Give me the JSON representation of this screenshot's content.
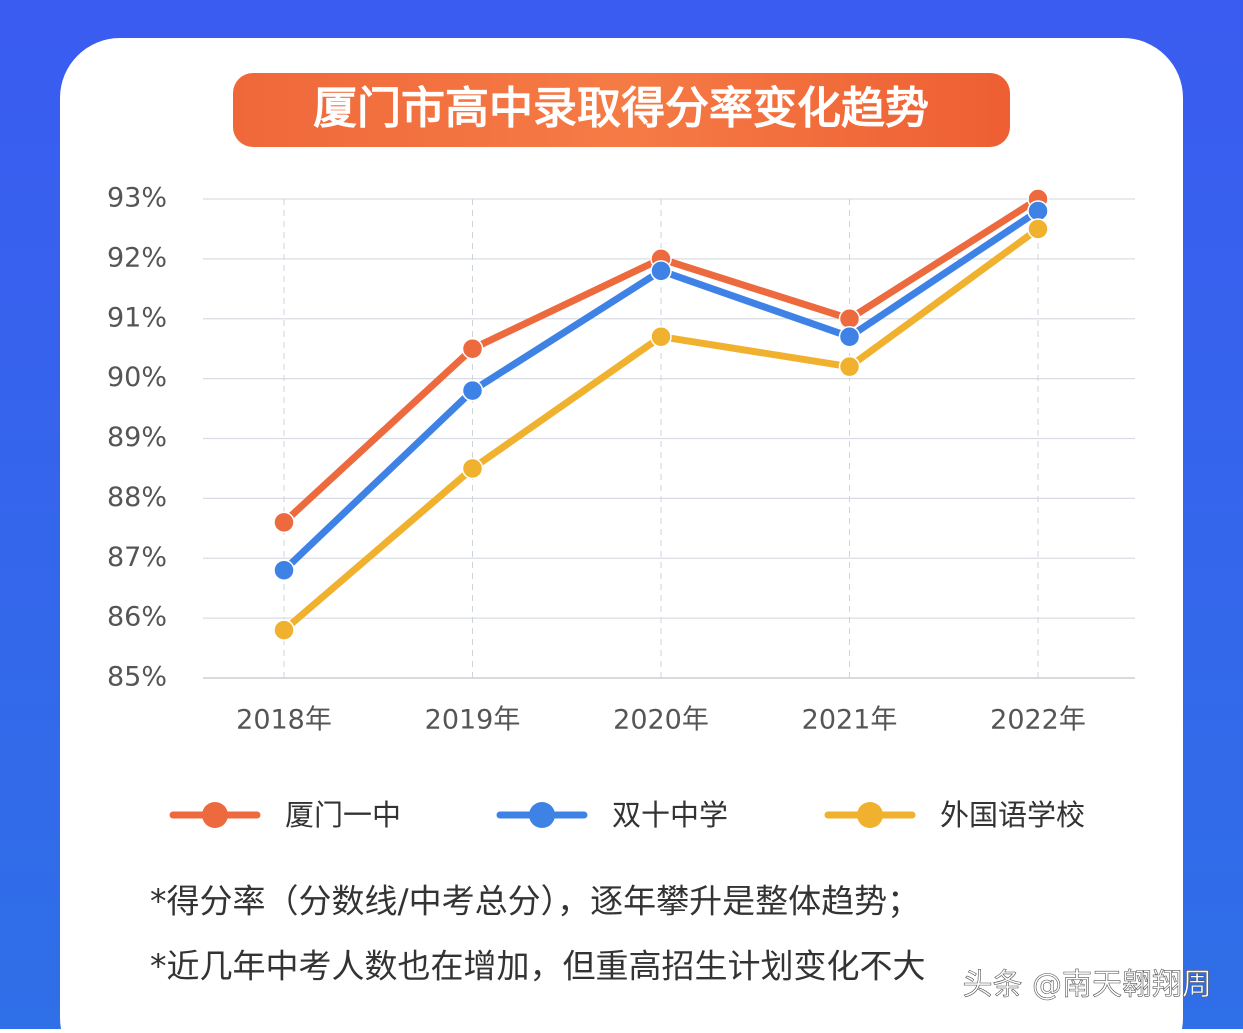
{
  "chart_data": {
    "type": "line",
    "title": "厦门市高中录取得分率变化趋势",
    "categories": [
      "2018年",
      "2019年",
      "2020年",
      "2021年",
      "2022年"
    ],
    "series": [
      {
        "name": "厦门一中",
        "color": "#ec6a3d",
        "values": [
          87.6,
          90.5,
          92.0,
          91.0,
          93.0
        ]
      },
      {
        "name": "双十中学",
        "color": "#3f82e6",
        "values": [
          86.8,
          89.8,
          91.8,
          90.7,
          92.8
        ]
      },
      {
        "name": "外国语学校",
        "color": "#f0b22e",
        "values": [
          85.8,
          88.5,
          90.7,
          90.2,
          92.5
        ]
      }
    ],
    "ylim": [
      85,
      93
    ],
    "yticks": [
      {
        "value": 85,
        "label": "85%"
      },
      {
        "value": 86,
        "label": "86%"
      },
      {
        "value": 87,
        "label": "87%"
      },
      {
        "value": 88,
        "label": "88%"
      },
      {
        "value": 89,
        "label": "89%"
      },
      {
        "value": 90,
        "label": "90%"
      },
      {
        "value": 91,
        "label": "91%"
      },
      {
        "value": 92,
        "label": "92%"
      },
      {
        "value": 93,
        "label": "93%"
      }
    ],
    "grid": true,
    "notes": [
      "*得分率（分数线/中考总分），逐年攀升是整体趋势；",
      "*近几年中考人数也在增加，但重高招生计划变化不大"
    ]
  },
  "watermark": "头条 @南天翱翔周"
}
